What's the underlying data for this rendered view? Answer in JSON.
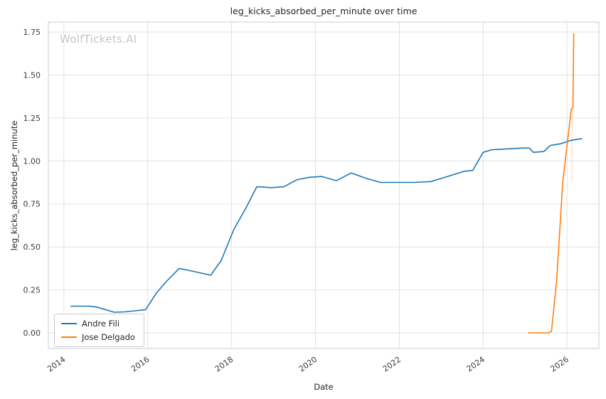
{
  "watermark": "WolfTickets.AI",
  "chart_data": {
    "type": "line",
    "title": "leg_kicks_absorbed_per_minute over time",
    "xlabel": "Date",
    "ylabel": "leg_kicks_absorbed_per_minute",
    "grid": true,
    "legend_position": "lower left",
    "x_ticks": [
      "2014",
      "2016",
      "2018",
      "2020",
      "2022",
      "2024",
      "2026"
    ],
    "y_ticks": [
      "0.00",
      "0.25",
      "0.50",
      "0.75",
      "1.00",
      "1.25",
      "1.50",
      "1.75"
    ],
    "xlim": [
      2013.63,
      2026.76
    ],
    "ylim": [
      -0.091,
      1.808
    ],
    "series": [
      {
        "name": "Andre Fili",
        "color": "#1f77b4",
        "points": [
          [
            2014.17,
            0.155
          ],
          [
            2014.6,
            0.155
          ],
          [
            2014.78,
            0.15
          ],
          [
            2015.2,
            0.12
          ],
          [
            2015.45,
            0.122
          ],
          [
            2015.95,
            0.135
          ],
          [
            2016.2,
            0.23
          ],
          [
            2016.45,
            0.3
          ],
          [
            2016.75,
            0.375
          ],
          [
            2017.05,
            0.36
          ],
          [
            2017.5,
            0.335
          ],
          [
            2017.75,
            0.42
          ],
          [
            2018.05,
            0.6
          ],
          [
            2018.35,
            0.73
          ],
          [
            2018.6,
            0.85
          ],
          [
            2018.95,
            0.845
          ],
          [
            2019.25,
            0.85
          ],
          [
            2019.55,
            0.89
          ],
          [
            2019.85,
            0.905
          ],
          [
            2020.15,
            0.91
          ],
          [
            2020.5,
            0.885
          ],
          [
            2020.85,
            0.93
          ],
          [
            2021.2,
            0.9
          ],
          [
            2021.55,
            0.875
          ],
          [
            2021.95,
            0.875
          ],
          [
            2022.35,
            0.875
          ],
          [
            2022.75,
            0.88
          ],
          [
            2023.15,
            0.91
          ],
          [
            2023.55,
            0.94
          ],
          [
            2023.75,
            0.945
          ],
          [
            2024.0,
            1.05
          ],
          [
            2024.2,
            1.065
          ],
          [
            2024.55,
            1.07
          ],
          [
            2024.95,
            1.075
          ],
          [
            2025.1,
            1.075
          ],
          [
            2025.2,
            1.05
          ],
          [
            2025.45,
            1.055
          ],
          [
            2025.6,
            1.09
          ],
          [
            2025.85,
            1.1
          ],
          [
            2026.1,
            1.12
          ],
          [
            2026.35,
            1.13
          ]
        ]
      },
      {
        "name": "Jose Delgado",
        "color": "#ff7f0e",
        "points": [
          [
            2025.08,
            0.0
          ],
          [
            2025.32,
            0.0
          ],
          [
            2025.56,
            0.0
          ],
          [
            2025.63,
            0.01
          ],
          [
            2025.75,
            0.3
          ],
          [
            2025.9,
            0.88
          ],
          [
            2026.02,
            1.13
          ],
          [
            2026.1,
            1.3
          ],
          [
            2026.14,
            1.31
          ],
          [
            2026.16,
            1.74
          ]
        ]
      }
    ],
    "annotations": [
      {
        "type": "vline",
        "x": 2026.12,
        "y0": 0.88,
        "y1": 1.31,
        "color": "#ff7f0e",
        "opacity": 0.22
      }
    ]
  },
  "legend": {
    "item1": "Andre Fili",
    "item2": "Jose Delgado"
  }
}
